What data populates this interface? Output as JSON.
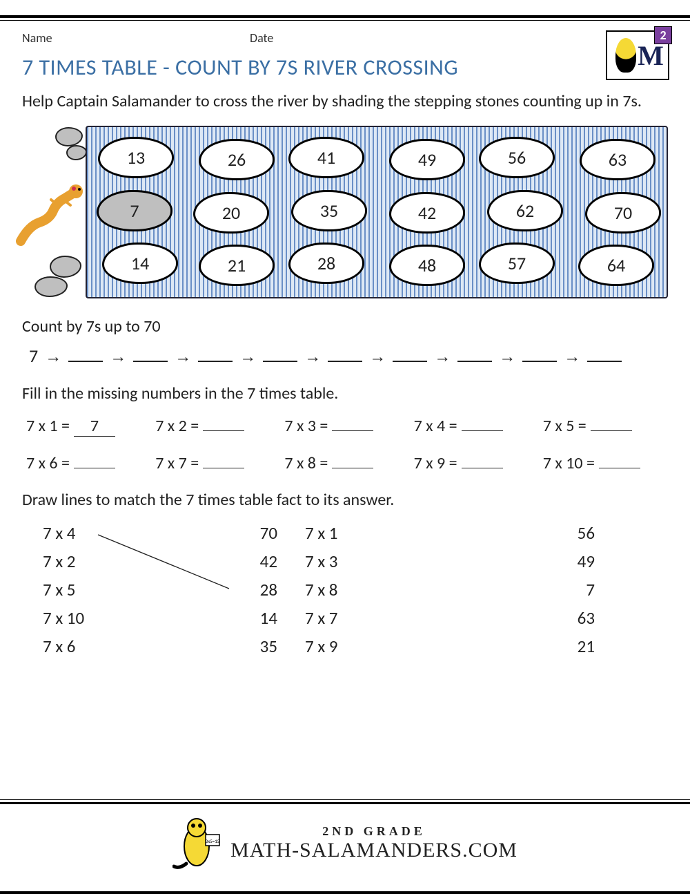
{
  "header": {
    "name_label": "Name",
    "date_label": "Date",
    "logo_grade": "2"
  },
  "title": "7 TIMES TABLE - COUNT BY 7S RIVER CROSSING",
  "intro": "Help Captain Salamander to cross the river by shading the stepping stones counting up in 7s.",
  "river": {
    "rows": [
      [
        "13",
        "26",
        "41",
        "49",
        "56",
        "63"
      ],
      [
        "7",
        "20",
        "35",
        "42",
        "62",
        "70"
      ],
      [
        "14",
        "21",
        "28",
        "48",
        "57",
        "64"
      ]
    ],
    "shaded": [
      [
        1,
        0
      ]
    ],
    "water_color": "#6a8fc6",
    "water_bg": "#dde8f5",
    "stone_fill": "#ffffff",
    "stone_shaded": "#bfbfbf",
    "stone_border": "#000000",
    "stone_fontsize": 26
  },
  "count": {
    "label": "Count by 7s up to 70",
    "start": "7",
    "blanks": 9,
    "arrow": "→"
  },
  "fill": {
    "label": "Fill in the missing numbers in the 7 times table.",
    "items": [
      {
        "q": "7 x 1 =",
        "a": "7"
      },
      {
        "q": "7 x 2 =",
        "a": ""
      },
      {
        "q": "7 x 3 =",
        "a": ""
      },
      {
        "q": "7 x 4 =",
        "a": ""
      },
      {
        "q": "7 x 5 =",
        "a": ""
      },
      {
        "q": "7 x 6 =",
        "a": ""
      },
      {
        "q": "7 x 7 =",
        "a": ""
      },
      {
        "q": "7 x 8 =",
        "a": ""
      },
      {
        "q": "7 x 9 =",
        "a": ""
      },
      {
        "q": "7 x 10 =",
        "a": ""
      }
    ]
  },
  "match": {
    "label": "Draw lines to match the 7 times table fact to its answer.",
    "left": [
      {
        "q": "7 x 4",
        "a": "70"
      },
      {
        "q": "7 x 2",
        "a": "42"
      },
      {
        "q": "7 x 5",
        "a": "28"
      },
      {
        "q": "7 x 10",
        "a": "14"
      },
      {
        "q": "7 x 6",
        "a": "35"
      }
    ],
    "right": [
      {
        "q": "7 x 1",
        "a": "56"
      },
      {
        "q": "7 x 3",
        "a": "49"
      },
      {
        "q": "7 x 8",
        "a": "7"
      },
      {
        "q": "7 x 7",
        "a": "63"
      },
      {
        "q": "7 x 9",
        "a": "21"
      }
    ],
    "example_line": {
      "from_row": 0,
      "to_row": 2
    }
  },
  "footer": {
    "grade": "2ND GRADE",
    "site": "MATH-SALAMANDERS.COM",
    "card": "3x5=15"
  },
  "colors": {
    "title": "#3B6FA4",
    "text": "#222222",
    "rule": "#000000"
  }
}
